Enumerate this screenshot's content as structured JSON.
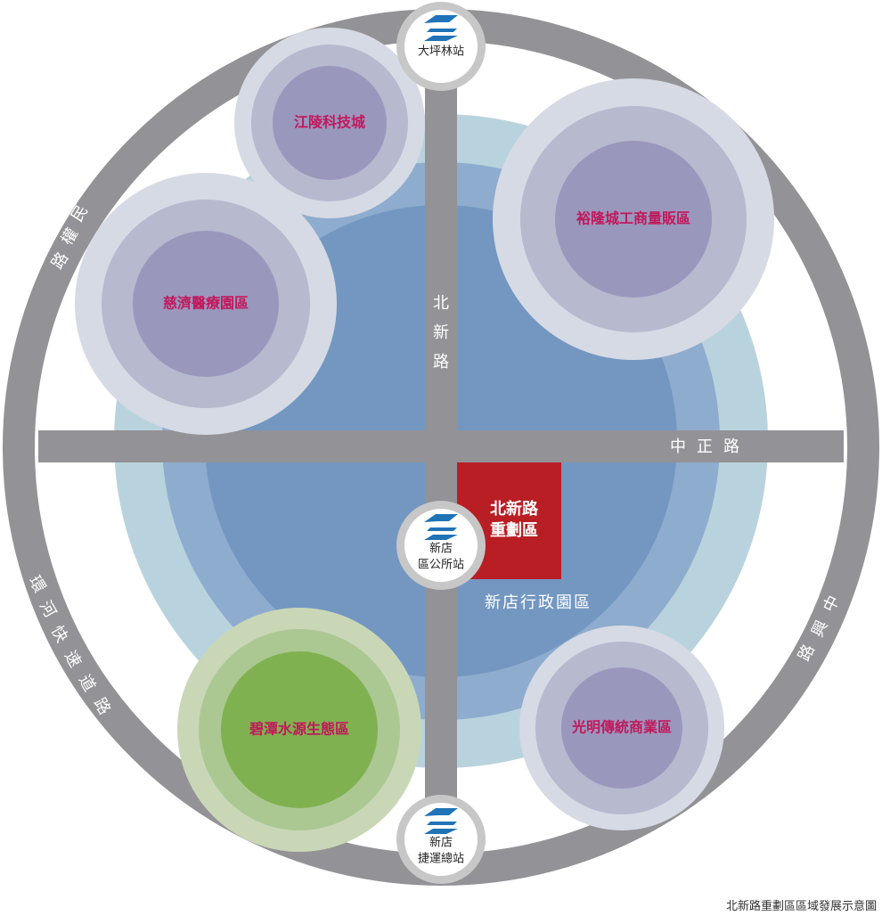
{
  "roads": {
    "minquan": [
      "民",
      "權",
      "路"
    ],
    "beixin": [
      "北",
      "新",
      "路"
    ],
    "zhongzheng": [
      "中",
      "正",
      "路"
    ],
    "huanhe": [
      "環",
      "河",
      "快",
      "速",
      "道",
      "路"
    ],
    "zhongxing": [
      "中",
      "興",
      "路"
    ]
  },
  "stations": {
    "top": [
      "大坪林站"
    ],
    "center": [
      "新店",
      "區公所站"
    ],
    "bottom": [
      "新店",
      "捷運總站"
    ]
  },
  "zones": {
    "jiangling": "江陵科技城",
    "yulong": "裕隆城工商量販區",
    "ciji": "慈濟醫療園區",
    "bitan": "碧潭水源生態區",
    "guangming": "光明傳統商業區"
  },
  "redevelopment": [
    "北新路",
    "重劃區"
  ],
  "admin_area": "新店行政園區",
  "caption": "北新路重劃區區域發展示意圖",
  "colors": {
    "ring": "#939296",
    "center_light": "#b9d3de",
    "center_mid": "#8eacce",
    "center_dark": "#7397c1",
    "gray_zone_outer": "#d6dae4",
    "gray_zone_mid": "#b7b9cf",
    "gray_zone_inner": "#9a97bd",
    "green_outer": "#c9d7b7",
    "green_mid": "#abc893",
    "green_inner": "#80b150",
    "redev": "#b81e24",
    "label_pink": "#c2185b"
  }
}
